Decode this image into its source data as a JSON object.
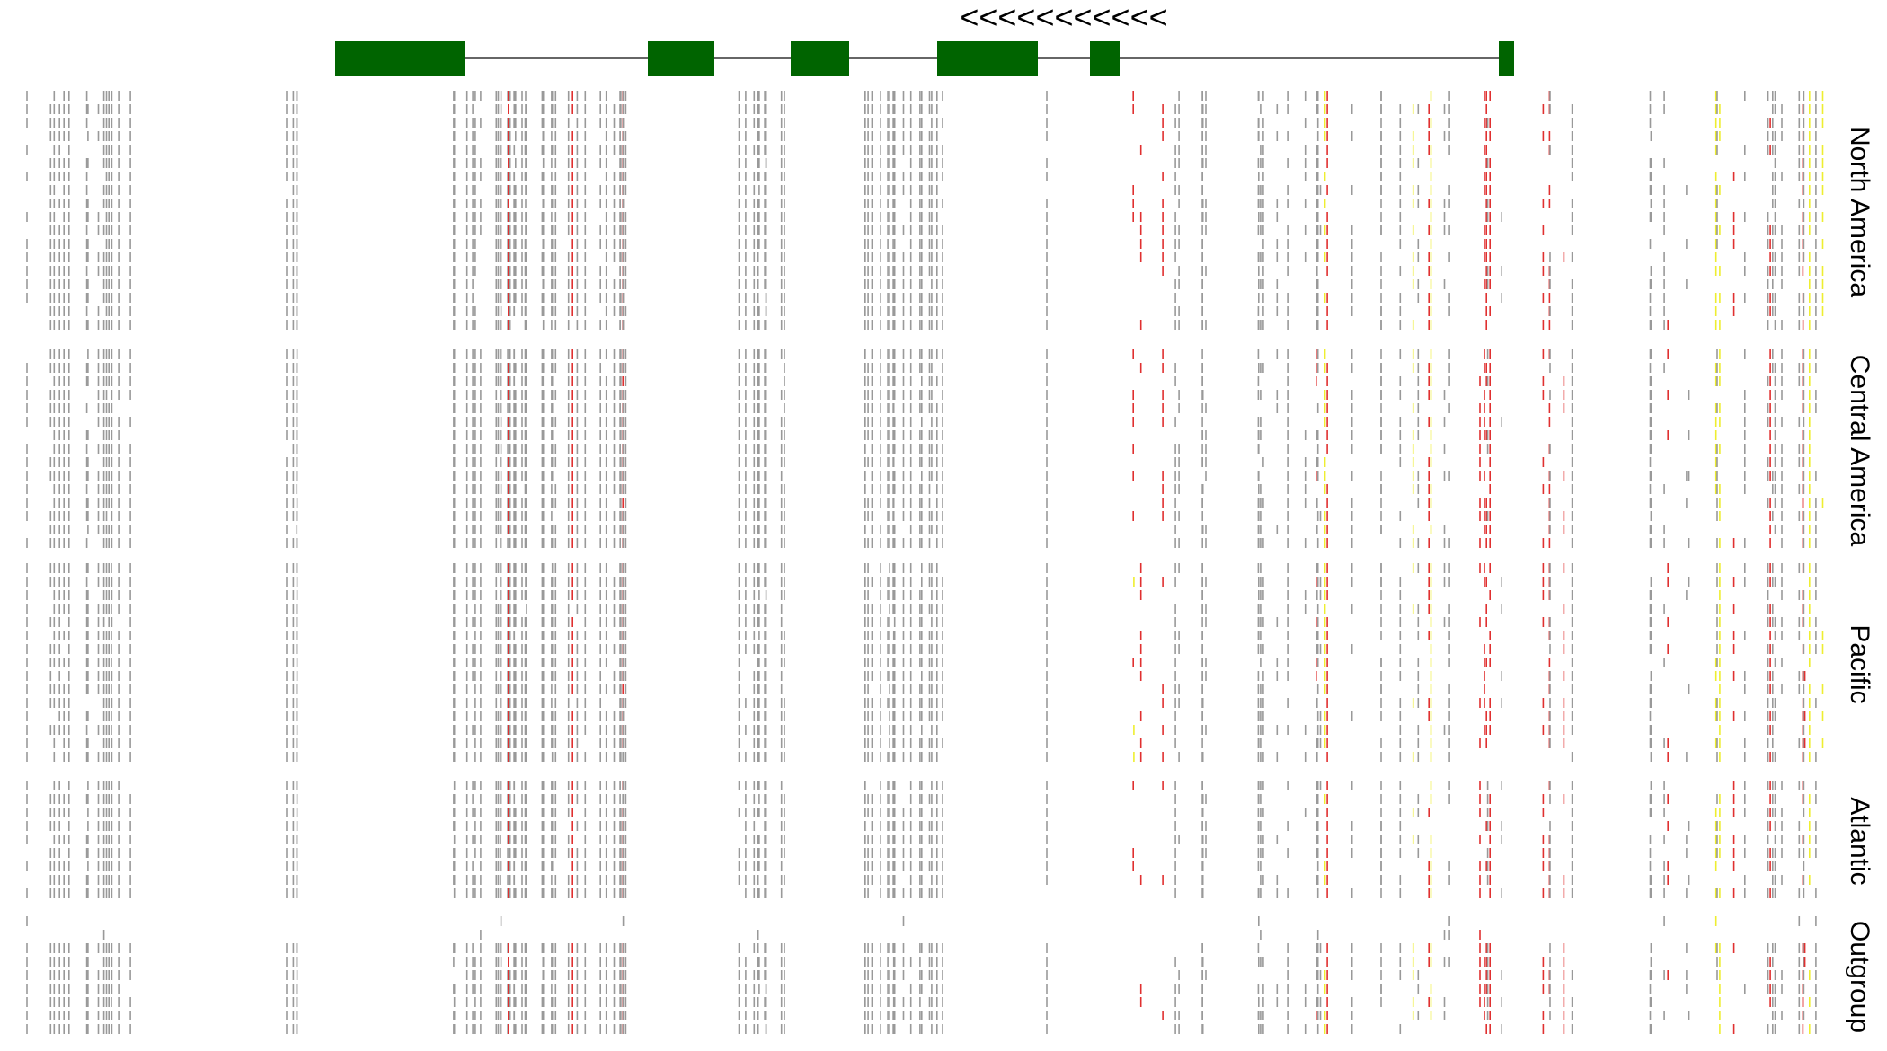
{
  "gene": {
    "strand_label": "<<<<<<<<<<<"
  },
  "groups": [
    {
      "label": "North America"
    },
    {
      "label": "Central America"
    },
    {
      "label": "Pacific"
    },
    {
      "label": "Atlantic"
    },
    {
      "label": "Outgroup"
    }
  ]
}
